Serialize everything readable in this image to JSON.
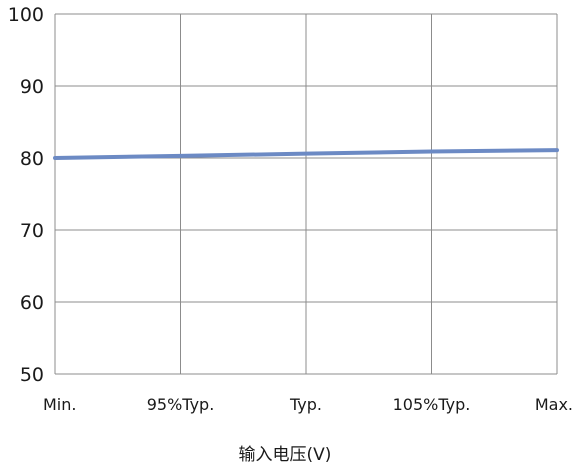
{
  "chart_data": {
    "type": "line",
    "title": "",
    "xlabel": "输入电压(V)",
    "ylabel": "",
    "categories": [
      "Min.",
      "95%Typ.",
      "Typ.",
      "105%Typ.",
      "Max."
    ],
    "series": [
      {
        "values": [
          80.0,
          80.3,
          80.6,
          80.9,
          81.1
        ],
        "color": "#6c8ac4"
      }
    ],
    "ylim": [
      50,
      100
    ],
    "yticks": [
      50,
      60,
      70,
      80,
      90,
      100
    ],
    "grid": true,
    "legend": "none"
  }
}
